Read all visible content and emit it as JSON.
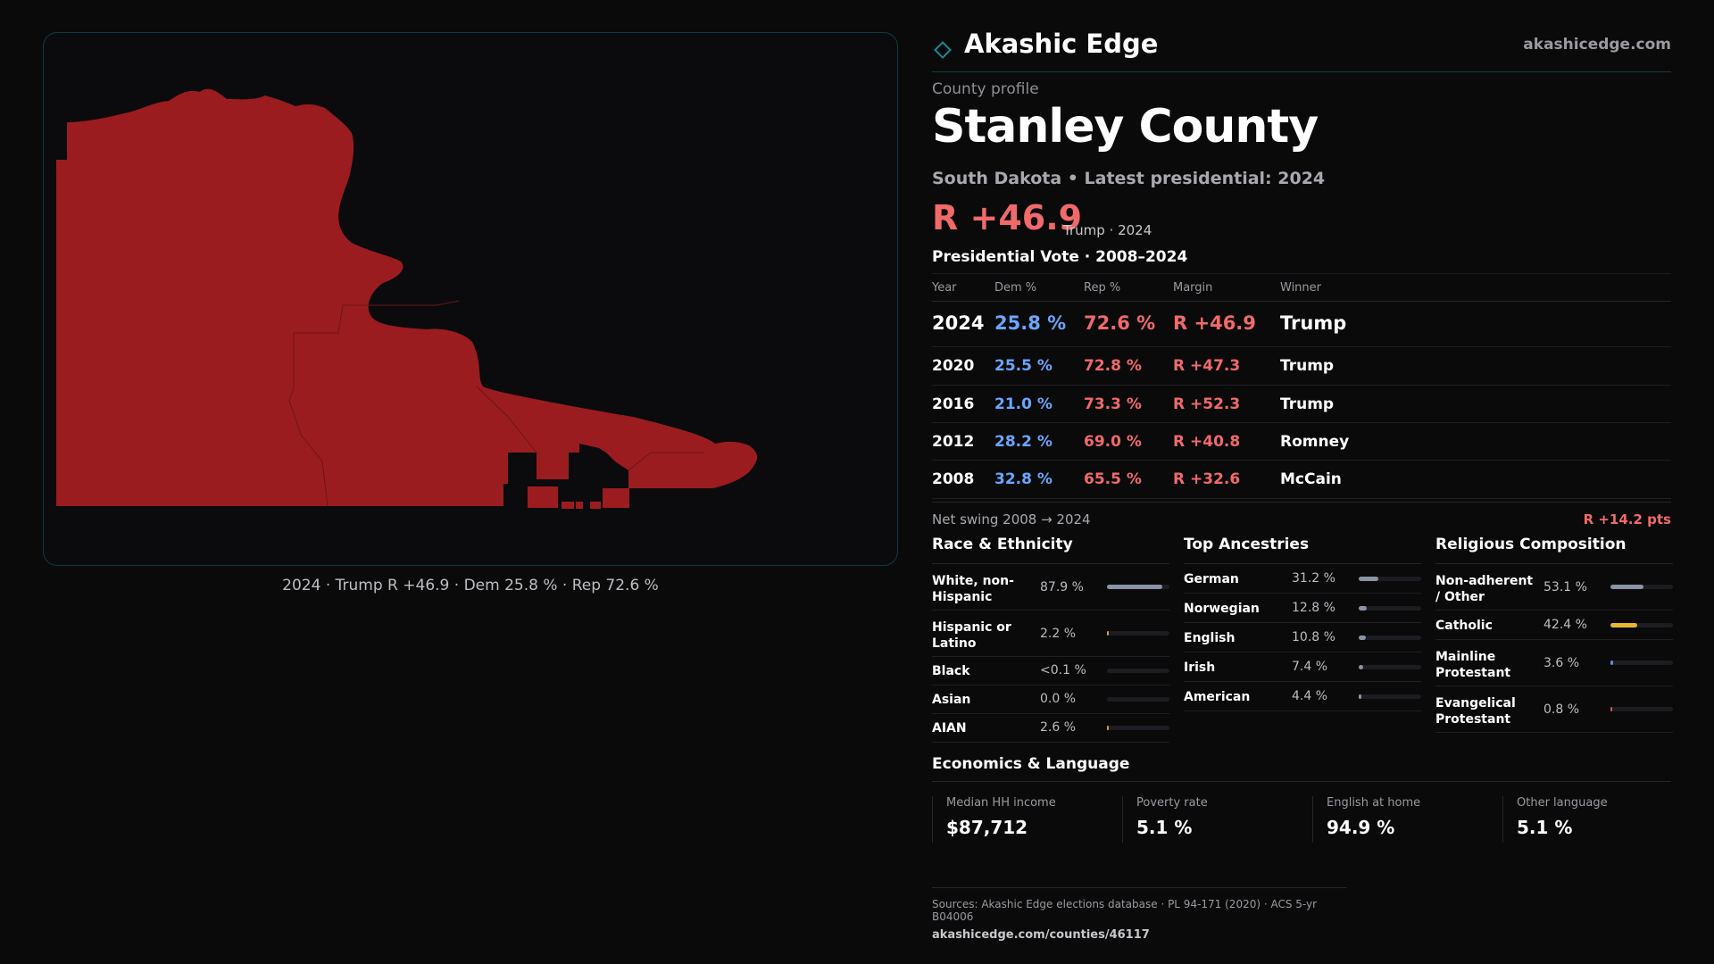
{
  "map": {
    "fill": "#9b1c1f",
    "caption": "2024 · Trump R +46.9 · Dem 25.8 % · Rep 72.6 %"
  },
  "header": {
    "brand": "Akashic Edge",
    "site": "akashicedge.com",
    "accent": "#1a8a96"
  },
  "profile": {
    "kicker": "County profile",
    "title": "Stanley County",
    "subtitle": "South Dakota • Latest presidential: 2024",
    "margin": "R +46.9",
    "margin_sub": "Trump · 2024"
  },
  "vote": {
    "title": "Presidential Vote · 2008–2024",
    "headers": {
      "year": "Year",
      "dem": "Dem %",
      "rep": "Rep %",
      "margin": "Margin",
      "winner": "Winner"
    },
    "rows": [
      {
        "year": "2024",
        "dem": "25.8 %",
        "rep": "72.6 %",
        "margin": "R +46.9",
        "winner": "Trump"
      },
      {
        "year": "2020",
        "dem": "25.5 %",
        "rep": "72.8 %",
        "margin": "R +47.3",
        "winner": "Trump"
      },
      {
        "year": "2016",
        "dem": "21.0 %",
        "rep": "73.3 %",
        "margin": "R +52.3",
        "winner": "Trump"
      },
      {
        "year": "2012",
        "dem": "28.2 %",
        "rep": "69.0 %",
        "margin": "R +40.8",
        "winner": "Romney"
      },
      {
        "year": "2008",
        "dem": "32.8 %",
        "rep": "65.5 %",
        "margin": "R +32.6",
        "winner": "McCain"
      }
    ],
    "swing_label": "Net swing 2008 → 2024",
    "swing_value": "R +14.2 pts"
  },
  "race": {
    "title": "Race & Ethnicity",
    "rows": [
      {
        "label": "White, non-Hispanic",
        "value": "87.9 %",
        "frac": 0.879,
        "color": "#8a94a6"
      },
      {
        "label": "Hispanic or Latino",
        "value": "2.2 %",
        "frac": 0.022,
        "color": "#e39a3b"
      },
      {
        "label": "Black",
        "value": "<0.1 %",
        "frac": 0.0,
        "color": "#8a94a6"
      },
      {
        "label": "Asian",
        "value": "0.0 %",
        "frac": 0.0,
        "color": "#8a94a6"
      },
      {
        "label": "AIAN",
        "value": "2.6 %",
        "frac": 0.026,
        "color": "#e39a3b"
      }
    ]
  },
  "ancestry": {
    "title": "Top Ancestries",
    "rows": [
      {
        "label": "German",
        "value": "31.2 %",
        "frac": 0.312,
        "color": "#8a94a6"
      },
      {
        "label": "Norwegian",
        "value": "12.8 %",
        "frac": 0.128,
        "color": "#8a94a6"
      },
      {
        "label": "English",
        "value": "10.8 %",
        "frac": 0.108,
        "color": "#8a94a6"
      },
      {
        "label": "Irish",
        "value": "7.4 %",
        "frac": 0.074,
        "color": "#8a94a6"
      },
      {
        "label": "American",
        "value": "4.4 %",
        "frac": 0.044,
        "color": "#8a94a6"
      }
    ]
  },
  "religion": {
    "title": "Religious Composition",
    "rows": [
      {
        "label": "Non-adherent / Other",
        "value": "53.1 %",
        "frac": 0.531,
        "color": "#8a94a6"
      },
      {
        "label": "Catholic",
        "value": "42.4 %",
        "frac": 0.424,
        "color": "#e8b52e"
      },
      {
        "label": "Mainline Protestant",
        "value": "3.6 %",
        "frac": 0.036,
        "color": "#5b8fd6"
      },
      {
        "label": "Evangelical Protestant",
        "value": "0.8 %",
        "frac": 0.008,
        "color": "#d0584f"
      }
    ]
  },
  "economics": {
    "title": "Economics & Language",
    "stats": [
      {
        "label": "Median HH income",
        "value": "$87,712"
      },
      {
        "label": "Poverty rate",
        "value": "5.1 %"
      },
      {
        "label": "English at home",
        "value": "94.9 %"
      },
      {
        "label": "Other language",
        "value": "5.1 %"
      }
    ]
  },
  "sources": {
    "line1": "Sources: Akashic Edge elections database · PL 94-171 (2020) · ACS 5-yr B04006",
    "line2": "akashicedge.com/counties/46117"
  }
}
